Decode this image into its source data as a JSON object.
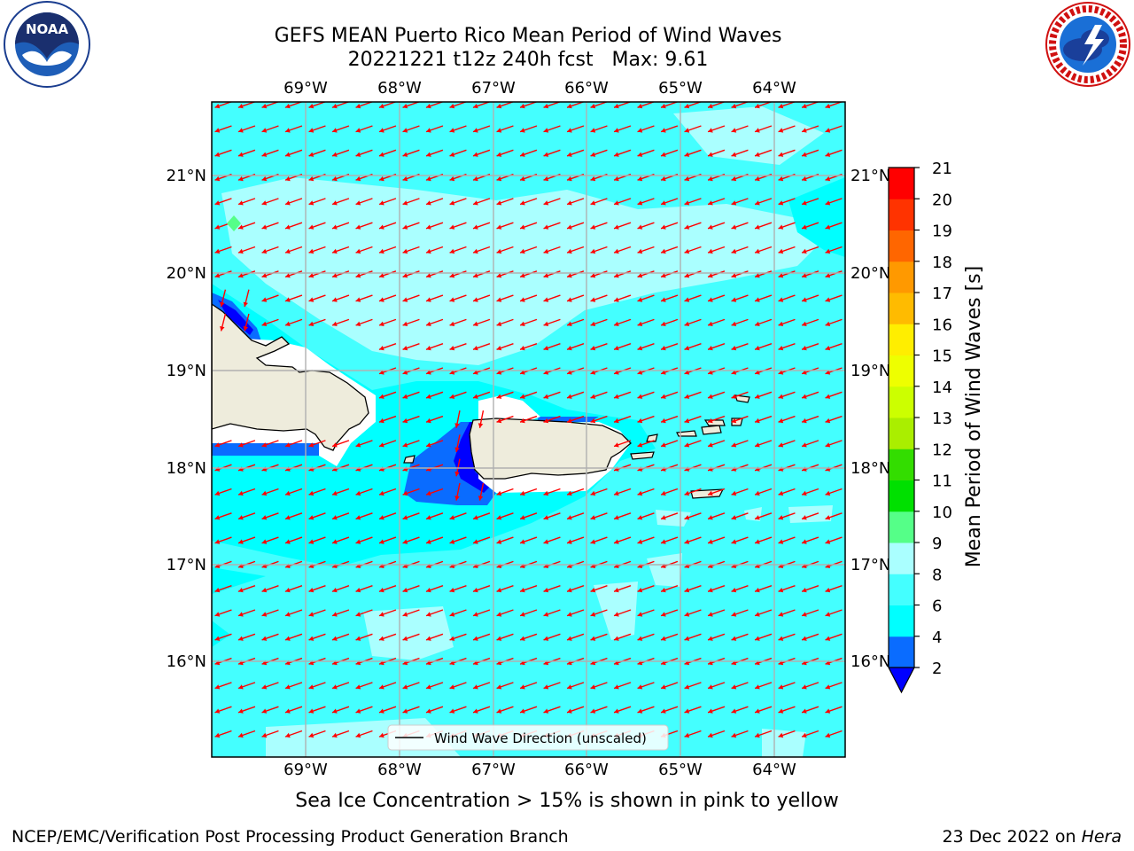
{
  "title": {
    "line1": "GEFS MEAN Puerto Rico Mean Period of Wind Waves",
    "line2": "20221221 t12z 240h fcst   Max: 9.61"
  },
  "logos": {
    "left": {
      "icon": "noaa-logo",
      "text": "NOAA",
      "ring_text": "NATIONAL OCEANIC AND ATMOSPHERIC ADMINISTRATION · U.S. DEPARTMENT OF COMMERCE"
    },
    "right": {
      "icon": "nws-logo",
      "ring_text": "NATIONAL WEATHER SERVICE"
    }
  },
  "map": {
    "lon_ticks": [
      "69°W",
      "68°W",
      "67°W",
      "66°W",
      "65°W",
      "64°W"
    ],
    "lat_ticks": [
      "21°N",
      "20°N",
      "19°N",
      "18°N",
      "17°N",
      "16°N"
    ],
    "legend_label": "Wind Wave Direction (unscaled)",
    "arrow_color": "#ff0000",
    "land_color": "#eeecdc",
    "gridline_color": "#b0b0b0"
  },
  "colorbar": {
    "label": "Mean Period of Wind Waves [s]",
    "tick_labels": [
      "2",
      "4",
      "6",
      "8",
      "9",
      "10",
      "11",
      "12",
      "13",
      "14",
      "15",
      "16",
      "17",
      "18",
      "19",
      "20",
      "21"
    ],
    "colors": [
      "#0000ff",
      "#0a6cff",
      "#00ffff",
      "#44ffff",
      "#aaffff",
      "#55ff88",
      "#00e000",
      "#33dd00",
      "#aaee00",
      "#ccff00",
      "#eeff00",
      "#ffee00",
      "#ffbb00",
      "#ff9900",
      "#ff6600",
      "#ff3300",
      "#ff0000"
    ],
    "extend": "min"
  },
  "footer": {
    "note": "Sea Ice Concentration > 15% is shown in pink to yellow",
    "left": "NCEP/EMC/Verification Post Processing Product Generation Branch",
    "date": "23 Dec 2022 on ",
    "machine": "Hera"
  }
}
